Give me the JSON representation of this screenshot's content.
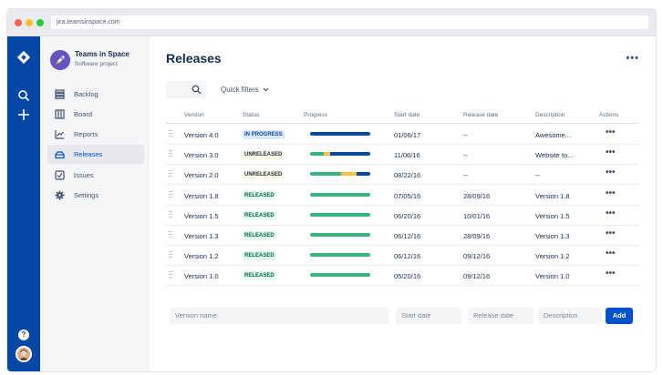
{
  "browser": {
    "url": "jira.teamsinspace.com"
  },
  "project": {
    "name": "Teams in Space",
    "type": "Software project"
  },
  "sidebar": {
    "items": [
      {
        "label": "Backlog",
        "icon": "backlog-icon"
      },
      {
        "label": "Board",
        "icon": "board-icon"
      },
      {
        "label": "Reports",
        "icon": "reports-icon"
      },
      {
        "label": "Releases",
        "icon": "releases-icon",
        "active": true
      },
      {
        "label": "Issues",
        "icon": "issues-icon"
      },
      {
        "label": "Settings",
        "icon": "settings-icon"
      }
    ]
  },
  "main": {
    "title": "Releases",
    "more": "•••",
    "quick_filters": "Quick filters",
    "columns": [
      "Version",
      "Status",
      "Progress",
      "Start date",
      "Release date",
      "Description",
      "Actions"
    ],
    "rows": [
      {
        "version": "Version 4.0",
        "status": "IN PROGRESS",
        "status_kind": "progress",
        "progress": {
          "done": 0,
          "in_progress": 0,
          "todo": 1.0
        },
        "start": "01/06/17",
        "release": "--",
        "description": "Awesome...",
        "action": "•••"
      },
      {
        "version": "Version 3.0",
        "status": "UNRELEASED",
        "status_kind": "unreleased",
        "progress": {
          "done": 0.22,
          "in_progress": 0.12,
          "todo": 0.66
        },
        "start": "11/06/16",
        "release": "--",
        "description": "Website to...",
        "action": "•••"
      },
      {
        "version": "Version 2.0",
        "status": "UNRELEASED",
        "status_kind": "unreleased",
        "progress": {
          "done": 0.52,
          "in_progress": 0.26,
          "todo": 0.22
        },
        "start": "08/22/16",
        "release": "--",
        "description": "--",
        "action": "•••"
      },
      {
        "version": "Version 1.8",
        "status": "RELEASED",
        "status_kind": "released",
        "progress": {
          "done": 1.0,
          "in_progress": 0,
          "todo": 0
        },
        "start": "07/05/16",
        "release": "28/09/16",
        "description": "Version 1.8",
        "action": "•••"
      },
      {
        "version": "Version 1.5",
        "status": "RELEASED",
        "status_kind": "released",
        "progress": {
          "done": 1.0,
          "in_progress": 0,
          "todo": 0
        },
        "start": "06/20/16",
        "release": "10/01/16",
        "description": "Version 1.5",
        "action": "•••"
      },
      {
        "version": "Version 1.3",
        "status": "RELEASED",
        "status_kind": "released",
        "progress": {
          "done": 1.0,
          "in_progress": 0,
          "todo": 0
        },
        "start": "06/12/16",
        "release": "28/09/16",
        "description": "Version 1.3",
        "action": "•••"
      },
      {
        "version": "Version 1.2",
        "status": "RELEASED",
        "status_kind": "released",
        "progress": {
          "done": 1.0,
          "in_progress": 0,
          "todo": 0
        },
        "start": "06/12/16",
        "release": "09/12/16",
        "description": "Version 1.2",
        "action": "•••"
      },
      {
        "version": "Version 1.0",
        "status": "RELEASED",
        "status_kind": "released",
        "progress": {
          "done": 1.0,
          "in_progress": 0,
          "todo": 0
        },
        "start": "05/20/16",
        "release": "09/12/16",
        "description": "Version 1.0",
        "action": "•••"
      }
    ],
    "new_version": {
      "name_placeholder": "Version name",
      "start_placeholder": "Start date",
      "release_placeholder": "Release date",
      "description_placeholder": "Description",
      "add_label": "Add"
    }
  },
  "colors": {
    "nav": "#0747a6",
    "done": "#36b37e",
    "in_progress": "#f6c342",
    "todo": "#0747a6",
    "primary": "#0052cc"
  }
}
